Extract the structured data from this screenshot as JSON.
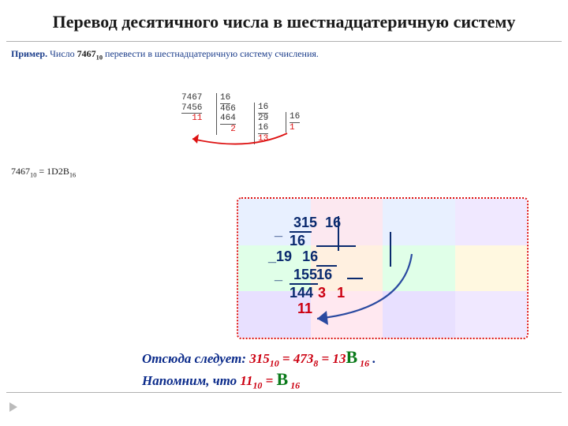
{
  "title": "Перевод десятичного числа в шестнадцатеричную систему",
  "example": {
    "label": "Пример.",
    "word_number": "Число",
    "number": "7467",
    "number_base": "10",
    "rest": "перевести в шестнадцатеричную систему счисления."
  },
  "longdiv1": {
    "c1": {
      "a": "7467",
      "b": "7456",
      "r": "11"
    },
    "c2": {
      "d": "16",
      "q": "466",
      "b": "464",
      "r": "2"
    },
    "c3": {
      "d": "16",
      "q": "29",
      "b": "16",
      "r": "13"
    },
    "c4": {
      "d": "16",
      "q": "1"
    },
    "remainders_color": "#d11",
    "text_color": "#333333",
    "arrow_color": "#d11"
  },
  "result": {
    "lhs_num": "7467",
    "lhs_base": "10",
    "eq": "=",
    "rhs_num": "1D2B",
    "rhs_base": "16"
  },
  "panel2": {
    "border_color": "#d11",
    "bg_colors": [
      [
        "#e8f0ff",
        "#fce8f0",
        "#e8f0ff",
        "#f0e8ff"
      ],
      [
        "#e0ffe8",
        "#fff0e0",
        "#e0ffe8",
        "#fff8e0"
      ],
      [
        "#e8e0ff",
        "#ffe8f0",
        "#e8e0ff",
        "#f0e8ff"
      ]
    ],
    "ld": {
      "dividend": "315",
      "divisor": "16",
      "step1_sub": "16",
      "step1_q": "19",
      "step2_num": "155",
      "step2_sub": "144",
      "q2_sub": "16",
      "q2_r": "3",
      "q2_q": "1",
      "final_r": "11",
      "text_color": "#0a2a6e",
      "red_color": "#c01010",
      "arrow_color": "#2a4aa0"
    }
  },
  "bottom": {
    "line1_a": "Отсюда следует:",
    "eq_315": "315",
    "eq_315_base": "10",
    "eq_473": "473",
    "eq_473_base": "8",
    "eq_13B": "13",
    "eq_B": "B",
    "eq_B_base": "16",
    "line2_a": "Напомним, что",
    "eq_11": "11",
    "eq_11_base": "10",
    "eq_Bv": "B",
    "eq_Bv_base": "16",
    "navy": "#0a2a8a",
    "red": "#c01010",
    "green": "#0a7a1a"
  }
}
